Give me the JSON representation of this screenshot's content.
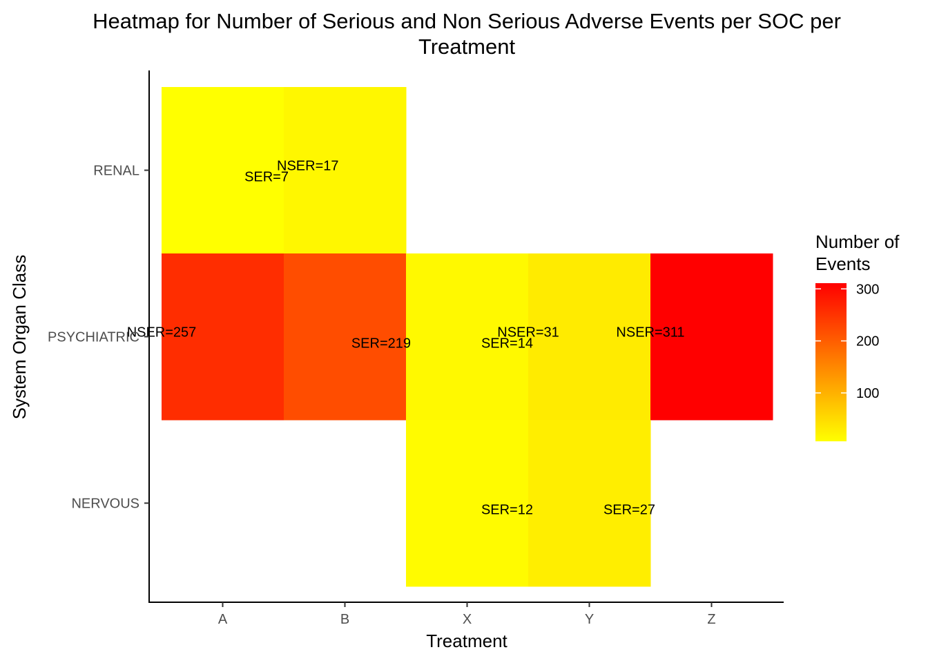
{
  "chart_data": {
    "type": "heatmap",
    "title_lines": [
      "Heatmap for Number of Serious and Non Serious Adverse Events per SOC per",
      "Treatment"
    ],
    "xlabel": "Treatment",
    "ylabel": "System Organ Class",
    "x_categories": [
      "A",
      "B",
      "X",
      "Y",
      "Z"
    ],
    "y_categories": [
      "NERVOUS",
      "PSYCHIATRIC",
      "RENAL"
    ],
    "cells": [
      {
        "x": "A",
        "y": "RENAL",
        "value": 7
      },
      {
        "x": "B",
        "y": "RENAL",
        "value": 17
      },
      {
        "x": "A",
        "y": "PSYCHIATRIC",
        "value": 257
      },
      {
        "x": "B",
        "y": "PSYCHIATRIC",
        "value": 219
      },
      {
        "x": "X",
        "y": "PSYCHIATRIC",
        "value": 14
      },
      {
        "x": "Y",
        "y": "PSYCHIATRIC",
        "value": 31
      },
      {
        "x": "Z",
        "y": "PSYCHIATRIC",
        "value": 311
      },
      {
        "x": "X",
        "y": "NERVOUS",
        "value": 12
      },
      {
        "x": "Y",
        "y": "NERVOUS",
        "value": 27
      }
    ],
    "labels": [
      {
        "x": "A",
        "y": "RENAL",
        "text": "SER=7",
        "anchor": "end",
        "row_offset": "low"
      },
      {
        "x": "A",
        "y": "RENAL",
        "text": "NSER=17",
        "anchor": "start",
        "row_offset": "high"
      },
      {
        "x": "A",
        "y": "PSYCHIATRIC",
        "text": "NSER=257",
        "anchor": "middle",
        "row_offset": "high"
      },
      {
        "x": "B",
        "y": "PSYCHIATRIC",
        "text": "SER=219",
        "anchor": "end",
        "row_offset": "low"
      },
      {
        "x": "X",
        "y": "PSYCHIATRIC",
        "text": "SER=14",
        "anchor": "end",
        "row_offset": "low"
      },
      {
        "x": "Y",
        "y": "PSYCHIATRIC",
        "text": "NSER=31",
        "anchor": "middle",
        "row_offset": "high"
      },
      {
        "x": "Z",
        "y": "PSYCHIATRIC",
        "text": "NSER=311",
        "anchor": "middle",
        "row_offset": "high"
      },
      {
        "x": "X",
        "y": "NERVOUS",
        "text": "SER=12",
        "anchor": "end",
        "row_offset": "low"
      },
      {
        "x": "Y",
        "y": "NERVOUS",
        "text": "SER=27",
        "anchor": "end",
        "row_offset": "low"
      }
    ],
    "color_scale": {
      "low": "#FFFF00",
      "high": "#FF0000",
      "domain": [
        7,
        311
      ]
    },
    "legend": {
      "title_lines": [
        "Number of",
        "Events"
      ],
      "ticks": [
        100,
        200,
        300
      ],
      "position": "right"
    },
    "grid": false
  }
}
